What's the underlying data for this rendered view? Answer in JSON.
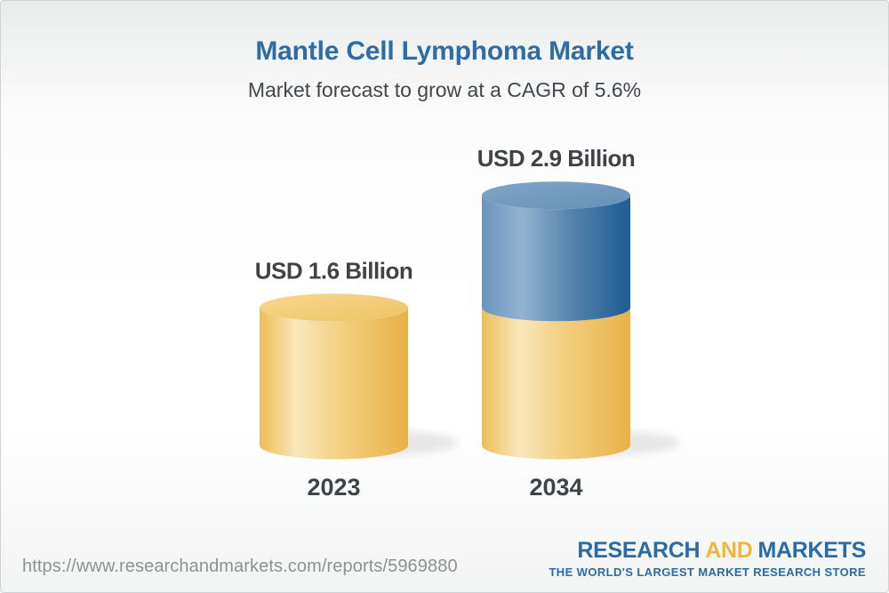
{
  "header": {
    "title": "Mantle Cell Lymphoma Market",
    "subtitle": "Market forecast to grow at a CAGR of 5.6%"
  },
  "chart_data": {
    "type": "bar",
    "style": "3d-cylinder-stacked",
    "title": "Mantle Cell Lymphoma Market",
    "subtitle": "Market forecast to grow at a CAGR of 5.6%",
    "categories": [
      "2023",
      "2034"
    ],
    "values": [
      1.6,
      2.9
    ],
    "value_labels": [
      "USD 1.6 Billion",
      "USD 2.9 Billion"
    ],
    "unit": "USD Billion",
    "segments": [
      [
        {
          "theme": "gold",
          "value": 1.6
        }
      ],
      [
        {
          "theme": "gold",
          "value": 1.6
        },
        {
          "theme": "blue",
          "value": 1.3
        }
      ]
    ],
    "legend": "none",
    "grid": "off"
  },
  "colors": {
    "title_blue": "#2e6da4",
    "subtitle_gray": "#42474b",
    "label_dark": "#3e4347",
    "url_gray": "#8e9193",
    "logo_blue": "#2b6ba5",
    "logo_gold": "#f0b73e",
    "shadow": "#d8d8d9",
    "gradients": {
      "gold_body": [
        [
          0,
          "#eebc57"
        ],
        [
          0.25,
          "#f9e7ba"
        ],
        [
          0.55,
          "#f3cf80"
        ],
        [
          1,
          "#e8b149"
        ]
      ],
      "gold_top": [
        [
          0,
          "#f7d98f"
        ],
        [
          1,
          "#eec263"
        ]
      ],
      "blue_body": [
        [
          0,
          "#6a94bd"
        ],
        [
          0.27,
          "#93b3d1"
        ],
        [
          0.6,
          "#5584ad"
        ],
        [
          1,
          "#1e5c94"
        ]
      ],
      "blue_top": [
        [
          0,
          "#7ea6c7"
        ],
        [
          1,
          "#6690b6"
        ]
      ]
    }
  },
  "footer": {
    "url": "https://www.researchandmarkets.com/reports/5969880",
    "logo": {
      "research": "RESEARCH",
      "and": "AND",
      "markets": "MARKETS",
      "tagline": "THE WORLD'S LARGEST MARKET RESEARCH STORE"
    }
  }
}
